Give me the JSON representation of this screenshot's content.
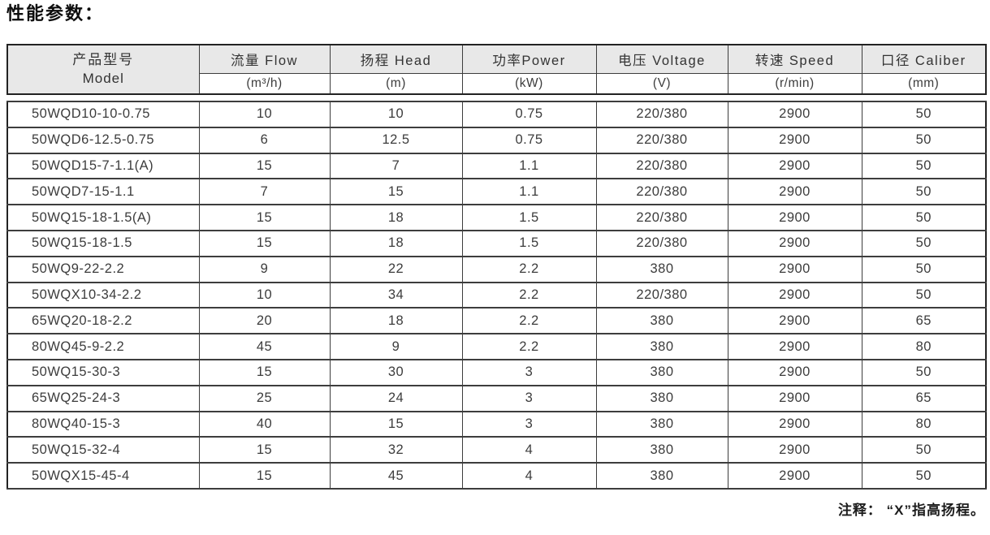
{
  "page": {
    "title": "性能参数：",
    "note": "注释： “X”指高扬程。"
  },
  "table": {
    "model_header": {
      "cn": "产品型号",
      "en": "Model"
    },
    "columns": [
      {
        "title": "流量 Flow",
        "unit": "(m³/h)"
      },
      {
        "title": "扬程 Head",
        "unit": "(m)"
      },
      {
        "title": "功率Power",
        "unit": "(kW)"
      },
      {
        "title": "电压 Voltage",
        "unit": "(V)"
      },
      {
        "title": "转速 Speed",
        "unit": "(r/min)"
      },
      {
        "title": "口径 Caliber",
        "unit": "(mm)"
      }
    ],
    "rows": [
      [
        "50WQD10-10-0.75",
        "10",
        "10",
        "0.75",
        "220/380",
        "2900",
        "50"
      ],
      [
        "50WQD6-12.5-0.75",
        "6",
        "12.5",
        "0.75",
        "220/380",
        "2900",
        "50"
      ],
      [
        "50WQD15-7-1.1(A)",
        "15",
        "7",
        "1.1",
        "220/380",
        "2900",
        "50"
      ],
      [
        "50WQD7-15-1.1",
        "7",
        "15",
        "1.1",
        "220/380",
        "2900",
        "50"
      ],
      [
        "50WQ15-18-1.5(A)",
        "15",
        "18",
        "1.5",
        "220/380",
        "2900",
        "50"
      ],
      [
        "50WQ15-18-1.5",
        "15",
        "18",
        "1.5",
        "220/380",
        "2900",
        "50"
      ],
      [
        "50WQ9-22-2.2",
        "9",
        "22",
        "2.2",
        "380",
        "2900",
        "50"
      ],
      [
        "50WQX10-34-2.2",
        "10",
        "34",
        "2.2",
        "220/380",
        "2900",
        "50"
      ],
      [
        "65WQ20-18-2.2",
        "20",
        "18",
        "2.2",
        "380",
        "2900",
        "65"
      ],
      [
        "80WQ45-9-2.2",
        "45",
        "9",
        "2.2",
        "380",
        "2900",
        "80"
      ],
      [
        "50WQ15-30-3",
        "15",
        "30",
        "3",
        "380",
        "2900",
        "50"
      ],
      [
        "65WQ25-24-3",
        "25",
        "24",
        "3",
        "380",
        "2900",
        "65"
      ],
      [
        "80WQ40-15-3",
        "40",
        "15",
        "3",
        "380",
        "2900",
        "80"
      ],
      [
        "50WQ15-32-4",
        "15",
        "32",
        "4",
        "380",
        "2900",
        "50"
      ],
      [
        "50WQX15-45-4",
        "15",
        "45",
        "4",
        "380",
        "2900",
        "50"
      ]
    ]
  },
  "colors": {
    "header_bg": "#e8e8e8",
    "border": "#3d3d3d",
    "outer_border": "#222222",
    "text": "#3c3c3c"
  }
}
